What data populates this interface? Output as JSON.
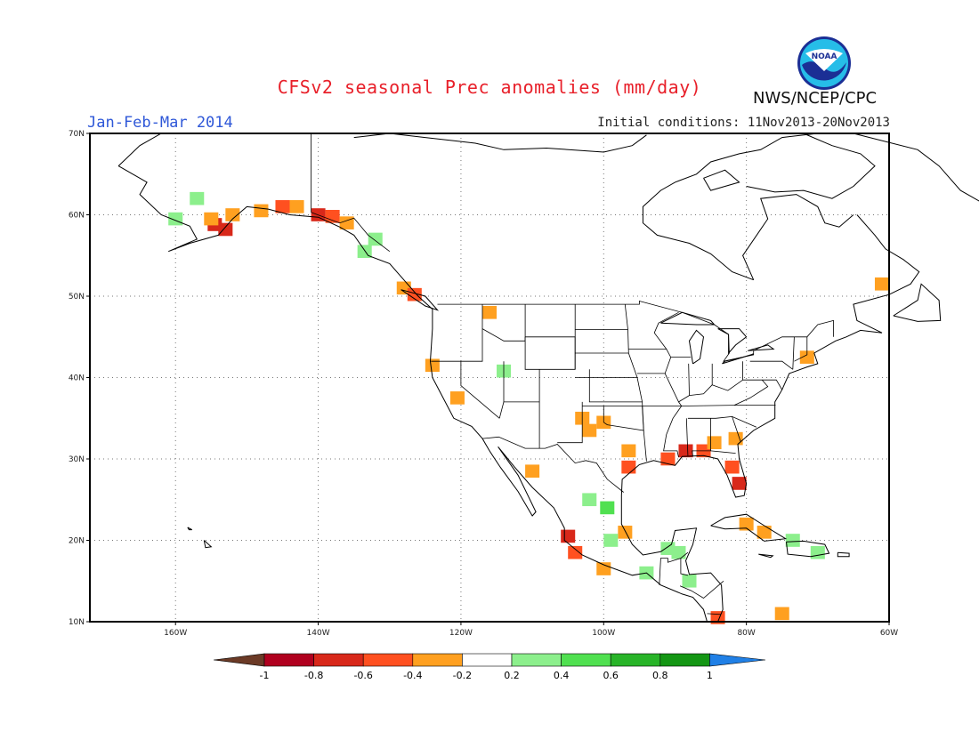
{
  "title": "CFSv2 seasonal Prec anomalies (mm/day)",
  "period": "Jan-Feb-Mar 2014",
  "initial_conditions": "Initial conditions: 11Nov2013-20Nov2013",
  "agency": "NWS/NCEP/CPC",
  "logo_text": "NOAA",
  "map": {
    "lon_range": [
      -172,
      -60
    ],
    "lat_range": [
      10,
      70
    ],
    "lon_ticks": [
      "160W",
      "140W",
      "120W",
      "100W",
      "80W",
      "60W"
    ],
    "lat_ticks": [
      "10N",
      "20N",
      "30N",
      "40N",
      "50N",
      "60N",
      "70N"
    ],
    "grid": "dotted"
  },
  "colorbar": {
    "labels": [
      "-1",
      "-0.8",
      "-0.6",
      "-0.4",
      "-0.2",
      "0.2",
      "0.4",
      "0.6",
      "0.8",
      "1"
    ],
    "colors": [
      "#6b3a26",
      "#b0001e",
      "#d8281a",
      "#ff5020",
      "#ffa020",
      "#ffffff",
      "#8cef8c",
      "#50e050",
      "#28b428",
      "#149614",
      "#2080e6"
    ]
  },
  "chart_data": {
    "type": "heatmap",
    "units": "mm/day",
    "cells": [
      {
        "lon": -154.5,
        "lat": 58.8,
        "value": -0.7
      },
      {
        "lon": -153.0,
        "lat": 58.2,
        "value": -0.7
      },
      {
        "lon": -155.0,
        "lat": 59.5,
        "value": -0.3
      },
      {
        "lon": -152.0,
        "lat": 60.0,
        "value": -0.3
      },
      {
        "lon": -148.0,
        "lat": 60.5,
        "value": -0.3
      },
      {
        "lon": -145.0,
        "lat": 61.0,
        "value": -0.5
      },
      {
        "lon": -143.0,
        "lat": 61.0,
        "value": -0.3
      },
      {
        "lon": -140.0,
        "lat": 60.0,
        "value": -0.6
      },
      {
        "lon": -138.0,
        "lat": 59.8,
        "value": -0.5
      },
      {
        "lon": -136.0,
        "lat": 59.0,
        "value": -0.3
      },
      {
        "lon": -160.0,
        "lat": 59.5,
        "value": 0.3
      },
      {
        "lon": -157.0,
        "lat": 62.0,
        "value": 0.3
      },
      {
        "lon": -132.0,
        "lat": 57.0,
        "value": 0.3
      },
      {
        "lon": -133.5,
        "lat": 55.5,
        "value": 0.3
      },
      {
        "lon": -128.0,
        "lat": 51.0,
        "value": -0.3
      },
      {
        "lon": -126.5,
        "lat": 50.2,
        "value": -0.5
      },
      {
        "lon": -124.0,
        "lat": 41.5,
        "value": -0.3
      },
      {
        "lon": -120.5,
        "lat": 37.5,
        "value": -0.3
      },
      {
        "lon": -116.0,
        "lat": 48.0,
        "value": -0.3
      },
      {
        "lon": -103.0,
        "lat": 35.0,
        "value": -0.3
      },
      {
        "lon": -102.0,
        "lat": 33.5,
        "value": -0.3
      },
      {
        "lon": -100.0,
        "lat": 34.5,
        "value": -0.3
      },
      {
        "lon": -96.5,
        "lat": 31.0,
        "value": -0.3
      },
      {
        "lon": -96.5,
        "lat": 29.0,
        "value": -0.4
      },
      {
        "lon": -91.0,
        "lat": 30.0,
        "value": -0.5
      },
      {
        "lon": -88.5,
        "lat": 31.0,
        "value": -0.6
      },
      {
        "lon": -86.0,
        "lat": 31.0,
        "value": -0.5
      },
      {
        "lon": -84.5,
        "lat": 32.0,
        "value": -0.3
      },
      {
        "lon": -81.5,
        "lat": 32.5,
        "value": -0.3
      },
      {
        "lon": -82.0,
        "lat": 29.0,
        "value": -0.5
      },
      {
        "lon": -81.0,
        "lat": 27.0,
        "value": -0.6
      },
      {
        "lon": -71.5,
        "lat": 42.5,
        "value": -0.3
      },
      {
        "lon": -61.0,
        "lat": 51.5,
        "value": -0.3
      },
      {
        "lon": -110.0,
        "lat": 28.5,
        "value": -0.3
      },
      {
        "lon": -105.0,
        "lat": 20.5,
        "value": -0.6
      },
      {
        "lon": -104.0,
        "lat": 18.5,
        "value": -0.4
      },
      {
        "lon": -100.0,
        "lat": 16.5,
        "value": -0.3
      },
      {
        "lon": -97.0,
        "lat": 21.0,
        "value": -0.3
      },
      {
        "lon": -80.0,
        "lat": 22.0,
        "value": -0.3
      },
      {
        "lon": -77.5,
        "lat": 21.0,
        "value": -0.3
      },
      {
        "lon": -84.0,
        "lat": 10.5,
        "value": -0.4
      },
      {
        "lon": -75.0,
        "lat": 11.0,
        "value": -0.3
      },
      {
        "lon": -102.0,
        "lat": 25.0,
        "value": 0.3
      },
      {
        "lon": -99.5,
        "lat": 24.0,
        "value": 0.4
      },
      {
        "lon": -99.0,
        "lat": 20.0,
        "value": 0.3
      },
      {
        "lon": -94.0,
        "lat": 16.0,
        "value": 0.3
      },
      {
        "lon": -91.0,
        "lat": 19.0,
        "value": 0.3
      },
      {
        "lon": -89.5,
        "lat": 18.5,
        "value": 0.3
      },
      {
        "lon": -88.0,
        "lat": 15.0,
        "value": 0.3
      },
      {
        "lon": -73.5,
        "lat": 20.0,
        "value": 0.3
      },
      {
        "lon": -70.0,
        "lat": 18.5,
        "value": 0.3
      },
      {
        "lon": -114.0,
        "lat": 40.8,
        "value": 0.3
      }
    ]
  }
}
